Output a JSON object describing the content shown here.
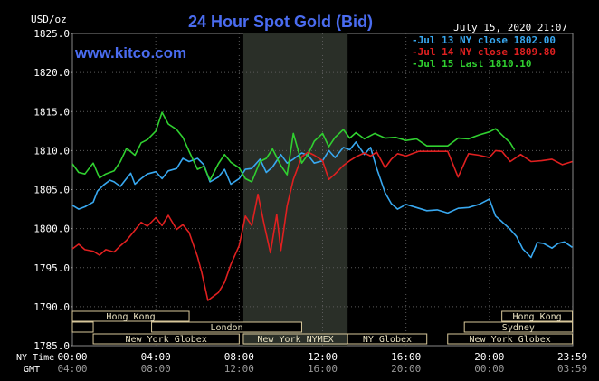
{
  "chart_data": {
    "type": "line",
    "title": "24 Hour Spot Gold (Bid)",
    "site": "www.kitco.com",
    "timestamp": "July 15, 2020 21:07",
    "ylabel": "USD/oz",
    "ylim": [
      1785,
      1825
    ],
    "y_ticks": [
      "1825.0",
      "1820.0",
      "1815.0",
      "1810.0",
      "1805.0",
      "1800.0",
      "1795.0",
      "1790.0",
      "1785.0"
    ],
    "y_tick_values": [
      1825,
      1820,
      1815,
      1810,
      1805,
      1800,
      1795,
      1790,
      1785
    ],
    "xlim": [
      0,
      24
    ],
    "x_row_labels": [
      "NY Time",
      "GMT"
    ],
    "x_ticks": [
      {
        "ny": "00:00",
        "gmt": "04:00",
        "h": 0
      },
      {
        "ny": "04:00",
        "gmt": "08:00",
        "h": 4
      },
      {
        "ny": "08:00",
        "gmt": "12:00",
        "h": 8
      },
      {
        "ny": "12:00",
        "gmt": "16:00",
        "h": 12
      },
      {
        "ny": "16:00",
        "gmt": "20:00",
        "h": 16
      },
      {
        "ny": "20:00",
        "gmt": "00:00",
        "h": 20
      },
      {
        "ny": "23:59",
        "gmt": "03:59",
        "h": 23.98
      }
    ],
    "grid": true,
    "legend_position": "top-right",
    "colors": {
      "background": "#000000",
      "axis_text": "#ffffff",
      "title": "#4a6cf0",
      "grid": "#5a5a5a",
      "nymex_shade": "#2a2f28",
      "session_box": "#d8c79a",
      "session_text": "#e8e0c0"
    },
    "nymex_shade_hours": [
      8.2,
      13.2
    ],
    "sessions": [
      {
        "label": "Hong Kong",
        "start": 0,
        "end": 5.6,
        "row": 0
      },
      {
        "label": "Hong Kong",
        "start": 20.6,
        "end": 23.98,
        "row": 0
      },
      {
        "label": "London",
        "start": 3.8,
        "end": 11.0,
        "row": 1
      },
      {
        "label": "Sydney",
        "start": 18.8,
        "end": 23.98,
        "row": 1
      },
      {
        "label": "New York Globex",
        "start": 1.0,
        "end": 8.0,
        "row": 2
      },
      {
        "label": "New York NYMEX",
        "start": 8.2,
        "end": 13.2,
        "row": 2
      },
      {
        "label": "NY Globex",
        "start": 13.2,
        "end": 17.0,
        "row": 2
      },
      {
        "label": "New York Globex",
        "start": 18.0,
        "end": 23.98,
        "row": 2
      },
      {
        "label": "",
        "start": 0,
        "end": 1.0,
        "row": 1
      }
    ],
    "series": [
      {
        "name": "Jul 13 NY close 1802.00",
        "color": "#38a8f0",
        "x": [
          0,
          0.3,
          0.6,
          1.0,
          1.2,
          1.5,
          1.8,
          2.0,
          2.3,
          2.5,
          2.8,
          3.0,
          3.3,
          3.6,
          4.0,
          4.3,
          4.6,
          5.0,
          5.3,
          5.6,
          6.0,
          6.3,
          6.6,
          7.0,
          7.3,
          7.6,
          8.0,
          8.3,
          8.6,
          9.0,
          9.3,
          9.6,
          10.0,
          10.3,
          10.6,
          11.0,
          11.3,
          11.6,
          12.0,
          12.3,
          12.6,
          13.0,
          13.3,
          13.6,
          14.0,
          14.3,
          14.6,
          15.0,
          15.3,
          15.6,
          16.0,
          16.5,
          17.0,
          17.5,
          18.0,
          18.5,
          19.0,
          19.5,
          20.0,
          20.3,
          20.6,
          21.0,
          21.3,
          21.6,
          22.0,
          22.3,
          22.6,
          23.0,
          23.3,
          23.6,
          23.98
        ],
        "y": [
          1803.0,
          1802.5,
          1802.8,
          1803.4,
          1804.8,
          1805.6,
          1806.2,
          1806.0,
          1805.4,
          1806.1,
          1807.1,
          1805.7,
          1806.4,
          1807.0,
          1807.3,
          1806.4,
          1807.4,
          1807.7,
          1809.0,
          1808.6,
          1809.0,
          1808.2,
          1806.0,
          1806.6,
          1807.6,
          1805.7,
          1806.4,
          1807.6,
          1807.7,
          1808.9,
          1807.2,
          1807.9,
          1809.5,
          1808.4,
          1808.9,
          1809.7,
          1809.4,
          1808.4,
          1808.7,
          1810.0,
          1809.1,
          1810.4,
          1810.1,
          1811.1,
          1809.5,
          1810.4,
          1807.7,
          1804.6,
          1803.2,
          1802.5,
          1803.1,
          1802.7,
          1802.3,
          1802.4,
          1802.0,
          1802.6,
          1802.7,
          1803.1,
          1803.8,
          1801.6,
          1800.9,
          1799.9,
          1799.0,
          1797.4,
          1796.3,
          1798.2,
          1798.1,
          1797.5,
          1798.1,
          1798.3,
          1797.6
        ]
      },
      {
        "name": "Jul 14 NY close 1809.80",
        "color": "#e02020",
        "x": [
          0,
          0.3,
          0.6,
          1.0,
          1.3,
          1.6,
          2.0,
          2.3,
          2.6,
          3.0,
          3.3,
          3.6,
          4.0,
          4.3,
          4.6,
          5.0,
          5.3,
          5.6,
          6.0,
          6.2,
          6.5,
          6.8,
          7.0,
          7.3,
          7.6,
          8.0,
          8.3,
          8.6,
          8.9,
          9.2,
          9.5,
          9.8,
          10.0,
          10.3,
          10.6,
          11.0,
          11.3,
          11.6,
          12.0,
          12.3,
          12.6,
          13.0,
          13.3,
          13.6,
          14.0,
          14.3,
          14.6,
          15.0,
          15.3,
          15.6,
          16.0,
          16.3,
          16.6,
          17.0,
          17.5,
          18.0,
          18.5,
          19.0,
          19.5,
          20.0,
          20.3,
          20.6,
          21.0,
          21.5,
          22.0,
          22.5,
          23.0,
          23.5,
          23.98
        ],
        "y": [
          1797.4,
          1798.0,
          1797.3,
          1797.1,
          1796.6,
          1797.3,
          1797.0,
          1797.8,
          1798.5,
          1799.8,
          1800.8,
          1800.3,
          1801.4,
          1800.4,
          1801.7,
          1799.9,
          1800.5,
          1799.5,
          1796.4,
          1794.4,
          1790.8,
          1791.4,
          1791.8,
          1793.1,
          1795.4,
          1797.8,
          1801.6,
          1800.4,
          1804.4,
          1800.5,
          1796.9,
          1801.8,
          1797.2,
          1802.9,
          1806.3,
          1809.2,
          1809.8,
          1809.4,
          1808.7,
          1806.3,
          1807.0,
          1808.1,
          1808.7,
          1809.2,
          1809.7,
          1809.3,
          1809.8,
          1807.8,
          1808.9,
          1809.6,
          1809.3,
          1809.6,
          1809.9,
          1809.9,
          1809.9,
          1809.9,
          1806.6,
          1809.6,
          1809.4,
          1809.1,
          1810.0,
          1809.9,
          1808.6,
          1809.5,
          1808.6,
          1808.7,
          1808.9,
          1808.2,
          1808.6
        ]
      },
      {
        "name": "Jul 15 Last 1810.10",
        "color": "#30d030",
        "x": [
          0,
          0.3,
          0.6,
          1.0,
          1.3,
          1.6,
          2.0,
          2.3,
          2.6,
          3.0,
          3.3,
          3.6,
          4.0,
          4.3,
          4.6,
          5.0,
          5.3,
          5.6,
          6.0,
          6.3,
          6.6,
          7.0,
          7.3,
          7.6,
          8.0,
          8.3,
          8.6,
          9.0,
          9.3,
          9.6,
          10.0,
          10.3,
          10.6,
          11.0,
          11.3,
          11.6,
          12.0,
          12.3,
          12.6,
          13.0,
          13.3,
          13.6,
          14.0,
          14.5,
          15.0,
          15.5,
          16.0,
          16.5,
          17.0,
          17.5,
          18.0,
          18.5,
          19.0,
          19.5,
          20.0,
          20.3,
          20.6,
          21.0,
          21.2
        ],
        "y": [
          1808.3,
          1807.2,
          1807.0,
          1808.4,
          1806.5,
          1807.0,
          1807.4,
          1808.6,
          1810.3,
          1809.4,
          1811.0,
          1811.4,
          1812.5,
          1814.9,
          1813.4,
          1812.7,
          1811.7,
          1809.9,
          1807.6,
          1808.0,
          1806.2,
          1808.3,
          1809.5,
          1808.5,
          1807.8,
          1806.4,
          1806.0,
          1808.6,
          1809.0,
          1810.2,
          1808.1,
          1806.9,
          1812.2,
          1808.4,
          1809.5,
          1811.2,
          1812.2,
          1810.5,
          1811.7,
          1812.7,
          1811.6,
          1812.3,
          1811.5,
          1812.2,
          1811.6,
          1811.7,
          1811.3,
          1811.5,
          1810.6,
          1810.6,
          1810.6,
          1811.6,
          1811.5,
          1812.0,
          1812.4,
          1812.8,
          1812.0,
          1811.0,
          1810.1
        ]
      }
    ]
  }
}
